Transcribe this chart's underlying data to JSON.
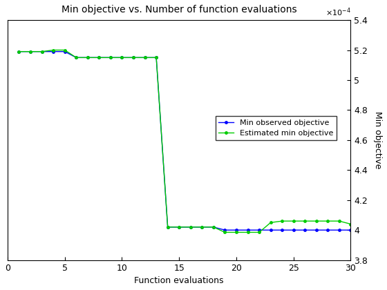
{
  "title": "Min objective vs. Number of function evaluations",
  "xlabel": "Function evaluations",
  "ylabel": "Min objective",
  "xlim": [
    0,
    30
  ],
  "ylim": [
    0.00038,
    0.00054
  ],
  "yticks": [
    0.00038,
    0.0004,
    0.00042,
    0.00044,
    0.00046,
    0.00048,
    0.0005,
    0.00052,
    0.00054
  ],
  "xticks": [
    0,
    5,
    10,
    15,
    20,
    25,
    30
  ],
  "line1_color": "#0000ff",
  "line2_color": "#00cc00",
  "marker": ".",
  "markersize": 5,
  "linewidth": 1.0,
  "legend_labels": [
    "Min observed objective",
    "Estimated min objective"
  ],
  "x": [
    1,
    2,
    3,
    4,
    5,
    6,
    7,
    8,
    9,
    10,
    11,
    12,
    13,
    14,
    15,
    16,
    17,
    18,
    19,
    20,
    21,
    22,
    23,
    24,
    25,
    26,
    27,
    28,
    29,
    30
  ],
  "y_min_obs": [
    0.000519,
    0.000519,
    0.000519,
    0.000519,
    0.000519,
    0.000515,
    0.000515,
    0.000515,
    0.000515,
    0.000515,
    0.000515,
    0.000515,
    0.000515,
    0.000402,
    0.000402,
    0.000402,
    0.000402,
    0.000402,
    0.0004,
    0.0004,
    0.0004,
    0.0004,
    0.0004,
    0.0004,
    0.0004,
    0.0004,
    0.0004,
    0.0004,
    0.0004,
    0.0004
  ],
  "y_est_min": [
    0.000519,
    0.000519,
    0.000519,
    0.00052,
    0.00052,
    0.000515,
    0.000515,
    0.000515,
    0.000515,
    0.000515,
    0.000515,
    0.000515,
    0.000515,
    0.000402,
    0.000402,
    0.000402,
    0.000402,
    0.000402,
    0.0003985,
    0.0003985,
    0.0003985,
    0.0003985,
    0.000405,
    0.000406,
    0.000406,
    0.000406,
    0.000406,
    0.000406,
    0.000406,
    0.000404
  ],
  "background_color": "#ffffff"
}
